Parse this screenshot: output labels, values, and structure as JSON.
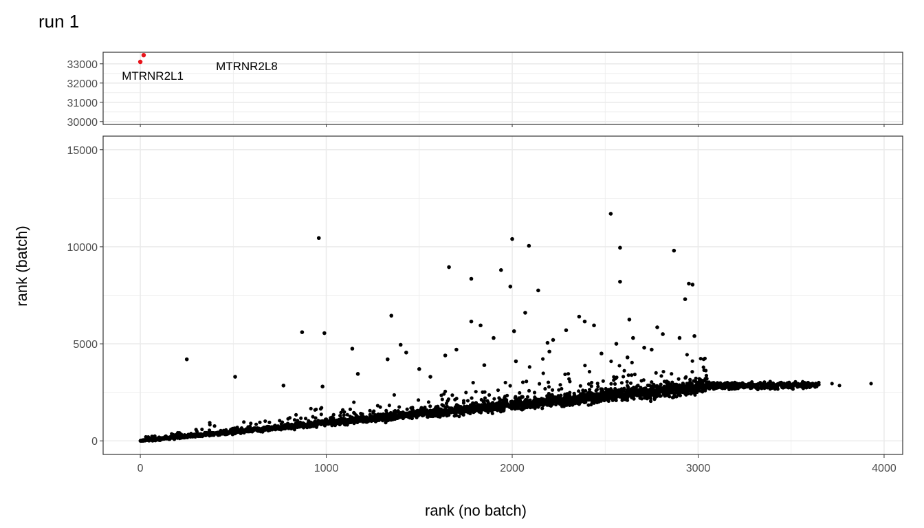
{
  "chart_data": {
    "type": "scatter",
    "title": "run 1",
    "xlabel": "rank (no batch)",
    "ylabel": "rank (batch)",
    "xlim": [
      -200,
      4100
    ],
    "x_ticks": [
      0,
      1000,
      2000,
      3000,
      4000
    ],
    "x_tick_labels": [
      "0",
      "1000",
      "2000",
      "3000",
      "4000"
    ],
    "x_minor_ticks": [
      500,
      1500,
      2500,
      3500
    ],
    "grid": true,
    "legend": "none",
    "colors": {
      "outlier": "#e8141b",
      "point": "#000000",
      "grid": "#ebebeb",
      "border": "#333333"
    },
    "panels": [
      {
        "name": "top",
        "ylim": [
          29850,
          33600
        ],
        "y_ticks": [
          30000,
          31000,
          32000,
          33000
        ],
        "y_tick_labels": [
          "30000",
          "31000",
          "32000",
          "33000"
        ],
        "y_minor_ticks": [
          30500,
          31500,
          32500
        ],
        "points": [
          {
            "x": 0,
            "y": 33100,
            "label": "MTRNR2L1"
          },
          {
            "x": 18,
            "y": 33450,
            "label": "MTRNR2L8"
          }
        ]
      },
      {
        "name": "bottom",
        "ylim": [
          -700,
          15700
        ],
        "y_ticks": [
          0,
          5000,
          10000,
          15000
        ],
        "y_tick_labels": [
          "0",
          "5000",
          "10000",
          "15000"
        ],
        "y_minor_ticks": [
          2500,
          7500,
          12500
        ],
        "outlier_points": [
          [
            250,
            4200
          ],
          [
            870,
            5600
          ],
          [
            960,
            10450
          ],
          [
            990,
            5550
          ],
          [
            1140,
            4750
          ],
          [
            1330,
            4200
          ],
          [
            1350,
            6450
          ],
          [
            1400,
            4950
          ],
          [
            1430,
            4550
          ],
          [
            1660,
            8950
          ],
          [
            1780,
            8350
          ],
          [
            1780,
            6150
          ],
          [
            1830,
            5950
          ],
          [
            1900,
            5300
          ],
          [
            1940,
            8800
          ],
          [
            1990,
            7950
          ],
          [
            2000,
            10400
          ],
          [
            2010,
            5650
          ],
          [
            2070,
            6600
          ],
          [
            2090,
            10050
          ],
          [
            2140,
            7750
          ],
          [
            2190,
            5050
          ],
          [
            2290,
            5700
          ],
          [
            2360,
            6400
          ],
          [
            2390,
            6150
          ],
          [
            2440,
            5950
          ],
          [
            2530,
            11700
          ],
          [
            2580,
            9950
          ],
          [
            2580,
            8200
          ],
          [
            2630,
            6250
          ],
          [
            2780,
            5850
          ],
          [
            2810,
            5500
          ],
          [
            2870,
            9800
          ],
          [
            2930,
            7300
          ],
          [
            2950,
            8100
          ],
          [
            2970,
            8050
          ],
          [
            2980,
            5400
          ],
          [
            2900,
            5300
          ],
          [
            2710,
            4800
          ],
          [
            2650,
            5300
          ],
          [
            2560,
            5000
          ],
          [
            2480,
            4500
          ],
          [
            2220,
            5200
          ],
          [
            1640,
            4400
          ],
          [
            1500,
            3700
          ],
          [
            1170,
            3450
          ],
          [
            980,
            2800
          ],
          [
            770,
            2850
          ],
          [
            510,
            3300
          ],
          [
            1700,
            4700
          ],
          [
            2200,
            4600
          ],
          [
            2750,
            4700
          ],
          [
            2620,
            4300
          ],
          [
            2020,
            4100
          ],
          [
            1850,
            3900
          ],
          [
            1560,
            3300
          ]
        ],
        "trend": {
          "x_range": [
            0,
            3930
          ],
          "band_x_range": [
            0,
            3050
          ],
          "points_count": 3200,
          "tail_points_count": 420,
          "tail_x_range": [
            3050,
            3930
          ],
          "tail_y_center": 2850,
          "tail_y_spread": 160,
          "slope": 0.92,
          "tail_extra_points": [
            [
              3720,
              2950
            ],
            [
              3760,
              2850
            ],
            [
              3930,
              2950
            ]
          ]
        }
      }
    ],
    "annotations": [
      {
        "text": "MTRNR2L1",
        "near": "top-left outlier"
      },
      {
        "text": "MTRNR2L8",
        "near": "top-left outlier"
      }
    ]
  }
}
